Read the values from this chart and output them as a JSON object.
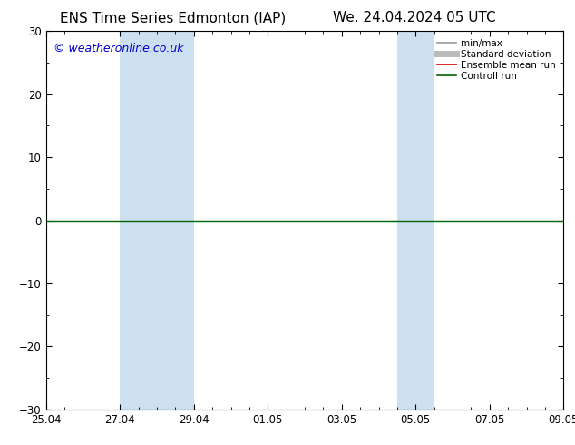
{
  "title_left": "ENS Time Series Edmonton (IAP)",
  "title_right": "We. 24.04.2024 05 UTC",
  "ylim": [
    -30,
    30
  ],
  "yticks": [
    -30,
    -20,
    -10,
    0,
    10,
    20,
    30
  ],
  "xlim_start": 0,
  "xlim_end": 14,
  "xtick_positions": [
    0,
    2,
    4,
    6,
    8,
    10,
    12,
    14
  ],
  "xtick_labels": [
    "25.04",
    "27.04",
    "29.04",
    "01.05",
    "03.05",
    "05.05",
    "07.05",
    "09.05"
  ],
  "shaded_bands": [
    {
      "xmin": 2,
      "xmax": 4,
      "color": "#cce0f0",
      "alpha": 1.0
    },
    {
      "xmin": 9.5,
      "xmax": 10.5,
      "color": "#cce0f0",
      "alpha": 1.0
    }
  ],
  "hline_y": 0,
  "hline_color": "#006400",
  "hline_lw": 1.0,
  "watermark": "© weatheronline.co.uk",
  "watermark_color": "#0000cc",
  "watermark_fontsize": 9,
  "background_color": "#ffffff",
  "legend_items": [
    {
      "label": "min/max",
      "color": "#999999",
      "lw": 1.2
    },
    {
      "label": "Standard deviation",
      "color": "#bbbbbb",
      "lw": 5
    },
    {
      "label": "Ensemble mean run",
      "color": "#cc0000",
      "lw": 1.2
    },
    {
      "label": "Controll run",
      "color": "#006400",
      "lw": 1.2
    }
  ],
  "title_fontsize": 11,
  "tick_fontsize": 8.5
}
